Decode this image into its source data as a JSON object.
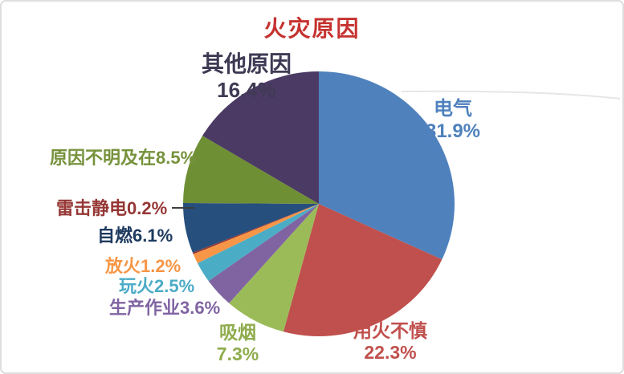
{
  "frame": {
    "background": "#ffffff",
    "border_color": "#dedede"
  },
  "chart_data": {
    "type": "pie",
    "title": "火灾原因",
    "title_color": "#C5322F",
    "unit": "%",
    "total": 100.0,
    "start_angle_deg": 0,
    "direction": "clockwise",
    "legend": "none (labels placed around pie, colored to match slices)",
    "slices": [
      {
        "id": "electrical",
        "label": "电气",
        "pct_label": "31.9%",
        "value": 31.9,
        "color": "#4F81BD",
        "text_color": "#4F81BD"
      },
      {
        "id": "careless-fire-use",
        "label": "用火不慎",
        "pct_label": "22.3%",
        "value": 22.3,
        "color": "#C0504D",
        "text_color": "#C0504D"
      },
      {
        "id": "smoking",
        "label": "吸烟",
        "pct_label": "7.3%",
        "value": 7.3,
        "color": "#9BBB59",
        "text_color": "#8FAC4D"
      },
      {
        "id": "production-work",
        "label": "生产作业",
        "pct_label": "3.6%",
        "value": 3.6,
        "color": "#8064A2",
        "text_color": "#8064A2"
      },
      {
        "id": "playing-with-fire",
        "label": "玩火",
        "pct_label": "2.5%",
        "value": 2.5,
        "color": "#4BACC6",
        "text_color": "#4BACC6"
      },
      {
        "id": "arson",
        "label": "放火",
        "pct_label": "1.2%",
        "value": 1.2,
        "color": "#F79646",
        "text_color": "#F79646"
      },
      {
        "id": "lightning-static",
        "label": "雷击静电",
        "pct_label": "0.2%",
        "value": 0.2,
        "color": "#963634",
        "text_color": "#953735"
      },
      {
        "id": "spontaneous-combustion",
        "label": "自燃",
        "pct_label": "6.1%",
        "value": 6.1,
        "color": "#264F7E",
        "text_color": "#1E3A60"
      },
      {
        "id": "unknown-cause",
        "label": "原因不明及在",
        "pct_label": "8.5%",
        "value": 8.5,
        "color": "#6F8F35",
        "text_color": "#76923C"
      },
      {
        "id": "other-causes",
        "label": "其他原因",
        "pct_label": "16.4%",
        "value": 16.4,
        "color": "#4B3A63",
        "text_color": "#3F3A54"
      }
    ]
  }
}
